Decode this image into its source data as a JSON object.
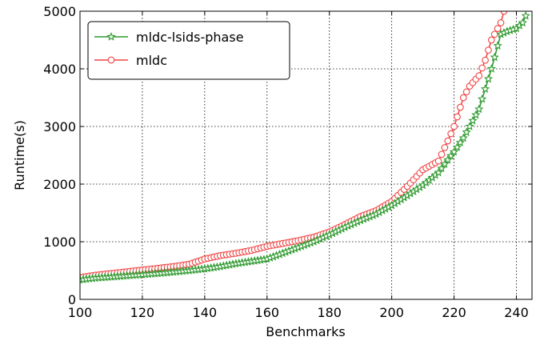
{
  "chart_data": {
    "type": "line",
    "title": "",
    "xlabel": "Benchmarks",
    "ylabel": "Runtime(s)",
    "xlim": [
      100,
      245
    ],
    "ylim": [
      0,
      5000
    ],
    "xticks": [
      100,
      120,
      140,
      160,
      180,
      200,
      220,
      240
    ],
    "yticks": [
      0,
      1000,
      2000,
      3000,
      4000,
      5000
    ],
    "grid": true,
    "legend_position": "top-left",
    "series": [
      {
        "name": "mldc-lsids-phase",
        "color": "#2e9a2e",
        "marker": "star",
        "x": [
          100,
          105,
          110,
          115,
          120,
          125,
          130,
          135,
          140,
          145,
          150,
          155,
          160,
          165,
          170,
          175,
          180,
          185,
          190,
          195,
          200,
          205,
          210,
          215,
          218,
          220,
          223,
          225,
          228,
          230,
          232,
          235,
          237,
          240,
          242,
          243
        ],
        "y": [
          340,
          370,
          390,
          410,
          430,
          450,
          475,
          500,
          530,
          570,
          620,
          660,
          700,
          800,
          900,
          1000,
          1120,
          1250,
          1370,
          1480,
          1630,
          1800,
          1980,
          2200,
          2420,
          2560,
          2800,
          3000,
          3300,
          3650,
          4000,
          4600,
          4650,
          4700,
          4800,
          4920
        ]
      },
      {
        "name": "mldc",
        "color": "#f04545",
        "marker": "circle",
        "x": [
          100,
          105,
          110,
          115,
          120,
          125,
          130,
          135,
          140,
          145,
          150,
          155,
          160,
          165,
          170,
          175,
          180,
          185,
          190,
          195,
          200,
          205,
          210,
          215,
          218,
          220,
          223,
          225,
          228,
          230,
          232,
          235,
          236,
          237
        ],
        "y": [
          380,
          420,
          450,
          480,
          510,
          540,
          570,
          610,
          700,
          760,
          800,
          850,
          920,
          970,
          1020,
          1080,
          1170,
          1300,
          1440,
          1540,
          1700,
          1960,
          2250,
          2400,
          2750,
          3000,
          3500,
          3700,
          3880,
          4150,
          4500,
          4800,
          5000,
          5200
        ]
      }
    ]
  }
}
